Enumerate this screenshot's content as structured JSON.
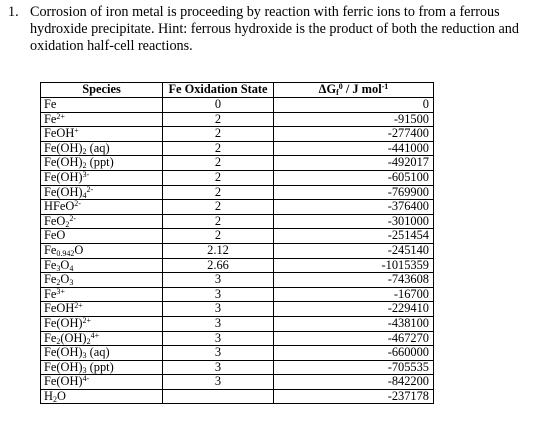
{
  "question": {
    "number": "1.",
    "text": "Corrosion of iron metal is proceeding by reaction with ferric ions to from a ferrous hydroxide precipitate.  Hint: ferrous hydroxide is the product of both the reduction and oxidation half-cell reactions."
  },
  "table": {
    "headers": {
      "species": "Species",
      "oxidation": "Fe Oxidation State",
      "gibbs": "ΔGf⁰ / J mol⁻¹"
    },
    "rows": [
      {
        "species": "Fe",
        "ox": "0",
        "g": "0"
      },
      {
        "species": "Fe2+",
        "ox": "2",
        "g": "-91500"
      },
      {
        "species": "FeOH+",
        "ox": "2",
        "g": "-277400"
      },
      {
        "species": "Fe(OH)2 (aq)",
        "ox": "2",
        "g": "-441000"
      },
      {
        "species": "Fe(OH)2 (ppt)",
        "ox": "2",
        "g": "-492017"
      },
      {
        "species": "Fe(OH)3-",
        "ox": "2",
        "g": "-605100"
      },
      {
        "species": "Fe(OH)42-",
        "ox": "2",
        "g": "-769900"
      },
      {
        "species": "HFeO2-",
        "ox": "2",
        "g": "-376400"
      },
      {
        "species": "FeO22-",
        "ox": "2",
        "g": "-301000"
      },
      {
        "species": "FeO",
        "ox": "2",
        "g": "-251454"
      },
      {
        "species": "Fe0.942O",
        "ox": "2.12",
        "g": "-245140"
      },
      {
        "species": "Fe3O4",
        "ox": "2.66",
        "g": "-1015359"
      },
      {
        "species": "Fe2O3",
        "ox": "3",
        "g": "-743608"
      },
      {
        "species": "Fe3+",
        "ox": "3",
        "g": "-16700"
      },
      {
        "species": "FeOH2+",
        "ox": "3",
        "g": "-229410"
      },
      {
        "species": "Fe(OH)2+",
        "ox": "3",
        "g": "-438100"
      },
      {
        "species": "Fe2(OH)24+",
        "ox": "3",
        "g": "-467270"
      },
      {
        "species": "Fe(OH)3 (aq)",
        "ox": "3",
        "g": "-660000"
      },
      {
        "species": "Fe(OH)3 (ppt)",
        "ox": "3",
        "g": "-705535"
      },
      {
        "species": "Fe(OH)4-",
        "ox": "3",
        "g": "-842200"
      },
      {
        "species": "H2O",
        "ox": "",
        "g": "-237178"
      }
    ]
  }
}
